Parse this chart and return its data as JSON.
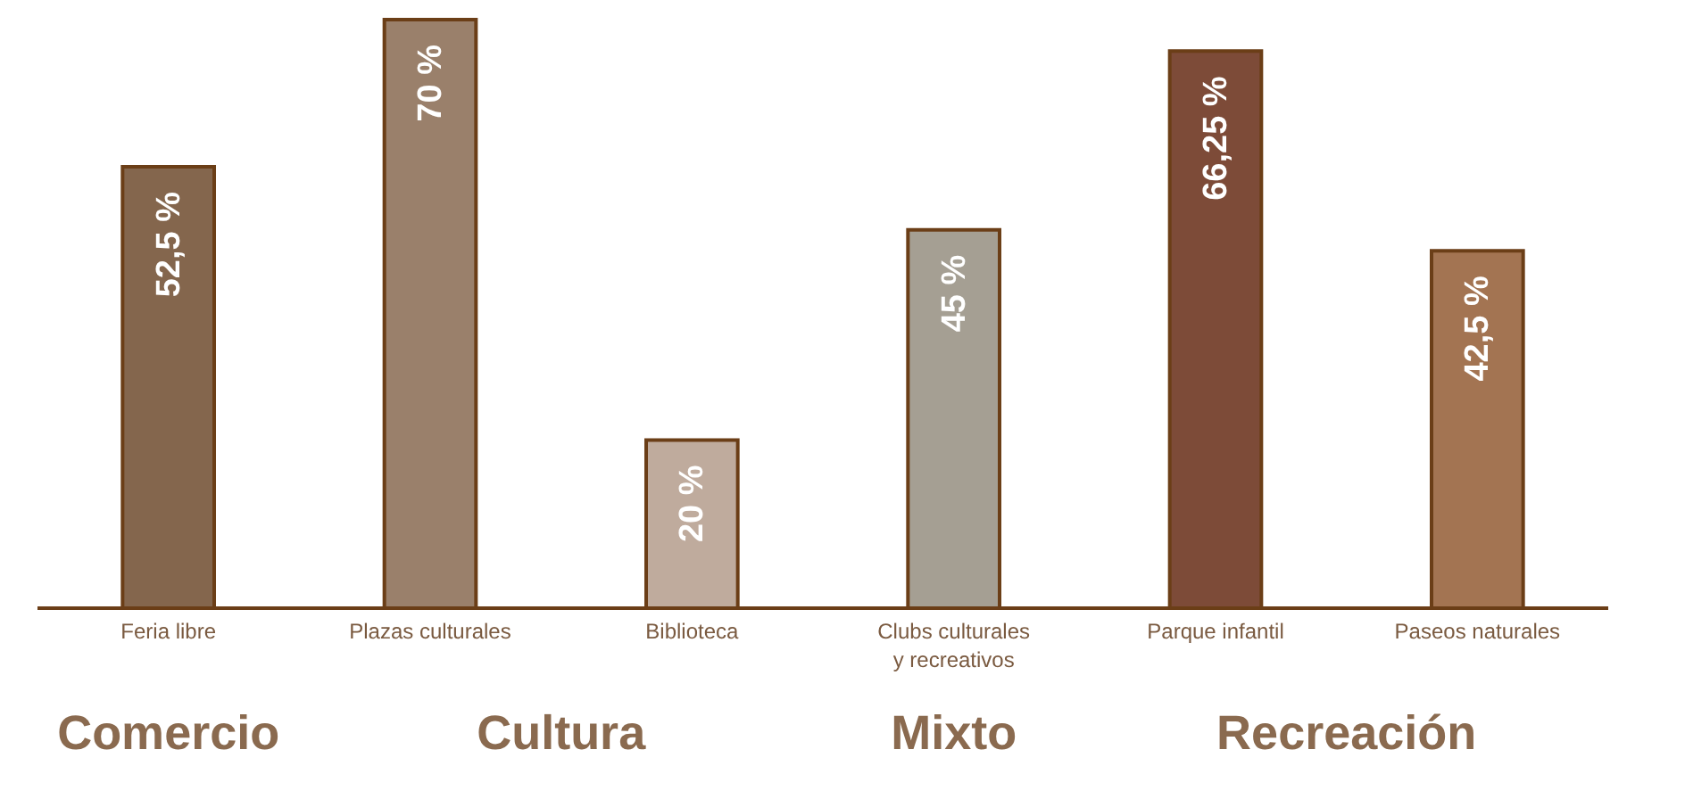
{
  "chart_data": {
    "type": "bar",
    "categories": [
      "Feria libre",
      "Plazas culturales",
      "Biblioteca",
      "Clubs culturales y recreativos",
      "Parque infantil",
      "Paseos naturales"
    ],
    "values": [
      52.5,
      70,
      20,
      45,
      66.25,
      42.5
    ],
    "colors": [
      "#84664d",
      "#9a806b",
      "#bfab9d",
      "#a59f93",
      "#7d4b38",
      "#a37452"
    ],
    "value_labels": [
      "52,5 %",
      "70 %",
      "20 %",
      "45 %",
      "66,25 %",
      "42,5 %"
    ],
    "ylim": [
      0,
      70
    ],
    "annotations": [
      "Comercio",
      "Cultura",
      "Mixto",
      "Recreación"
    ]
  }
}
